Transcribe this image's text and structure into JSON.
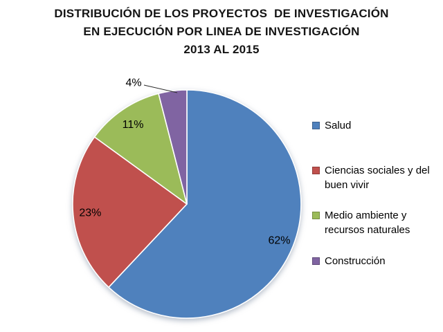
{
  "title": {
    "lines": [
      "DISTRIBUCIÓN DE LOS PROYECTOS  DE INVESTIGACIÓN",
      "EN EJECUCIÓN POR LINEA DE INVESTIGACIÓN",
      "2013 AL 2015"
    ]
  },
  "chart_data": {
    "type": "pie",
    "title": "DISTRIBUCIÓN DE LOS PROYECTOS DE INVESTIGACIÓN EN EJECUCIÓN POR LINEA DE INVESTIGACIÓN 2013 AL 2015",
    "categories": [
      "Salud",
      "Ciencias sociales y del buen vivir",
      "Medio ambiente y recursos naturales",
      "Construcción"
    ],
    "values": [
      62,
      23,
      11,
      4
    ],
    "data_labels": [
      "62%",
      "23%",
      "11%",
      "4%"
    ],
    "colors": [
      "#4F81BD",
      "#C0504D",
      "#9BBB59",
      "#8064A2"
    ],
    "start_angle_deg": 0,
    "direction": "clockwise",
    "legend_position": "right",
    "label_color": "#000000",
    "slice_border_color": "#FFFFFF",
    "background": "#FFFFFF"
  },
  "legend": {
    "items": [
      {
        "label": "Salud",
        "color": "#4F81BD"
      },
      {
        "label": "Ciencias sociales y del buen vivir",
        "color": "#C0504D"
      },
      {
        "label": "Medio ambiente y recursos naturales",
        "color": "#9BBB59"
      },
      {
        "label": "Construcción",
        "color": "#8064A2"
      }
    ]
  }
}
